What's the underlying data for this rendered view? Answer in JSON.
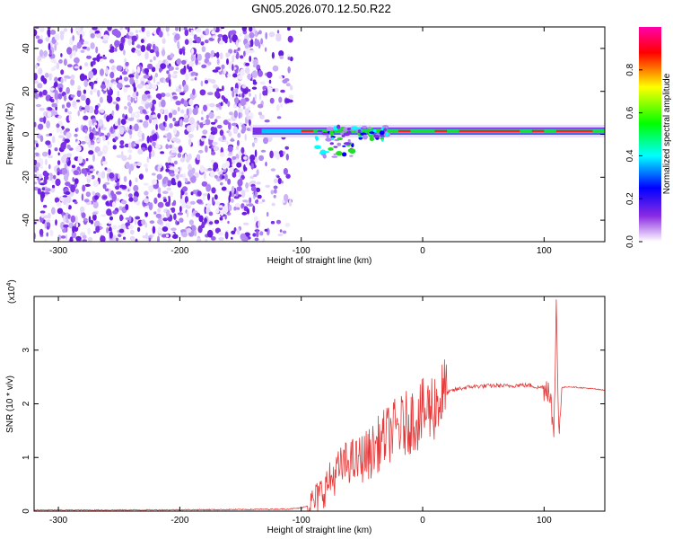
{
  "title": "GN05.2026.070.12.50.R22",
  "chart_data": [
    {
      "type": "heatmap",
      "xlabel": "Height of straight line (km)",
      "ylabel": "Frequency (Hz)",
      "xlim": [
        -320,
        150
      ],
      "ylim": [
        -50,
        50
      ],
      "x_ticks": [
        "-300",
        "-200",
        "-100",
        "0",
        "100"
      ],
      "y_ticks": [
        "-40",
        "-20",
        "0",
        "20",
        "40"
      ],
      "noise_region_x": [
        -320,
        -108
      ],
      "signal_band_center_hz": 1.5,
      "signal_start_x": -140,
      "colorbar": {
        "label": "Normalized spectral amplitude",
        "range": [
          0.0,
          1.0
        ],
        "ticks": [
          "0.0",
          "0.2",
          "0.4",
          "0.6",
          "0.8"
        ],
        "colormap": [
          "#ffffff",
          "#8a2be2",
          "#0000ff",
          "#00ffff",
          "#00ff00",
          "#ffff00",
          "#ff0000",
          "#ff00aa"
        ]
      }
    },
    {
      "type": "line",
      "xlabel": "Height of straight line (km)",
      "ylabel": "SNR (10 * v/v)",
      "y_multiplier": "(x10",
      "y_multiplier_exp": "4",
      "xlim": [
        -320,
        150
      ],
      "ylim": [
        0,
        4
      ],
      "x_ticks": [
        "-300",
        "-200",
        "-100",
        "0",
        "100"
      ],
      "y_ticks": [
        "0",
        "1",
        "2",
        "3"
      ],
      "color": "#e33b3b",
      "series": [
        {
          "x": [
            -320,
            -250,
            -150,
            -110,
            -100,
            -95,
            -90,
            -85,
            -80,
            -75,
            -70,
            -65,
            -60,
            -55,
            -50,
            -45,
            -40,
            -35,
            -30,
            -25,
            -20,
            -15,
            -10,
            -5,
            0,
            5,
            10,
            15,
            20,
            25,
            30,
            40,
            50,
            60,
            70,
            80,
            90,
            95,
            100,
            105,
            108,
            110,
            112,
            115,
            120,
            130,
            140,
            150
          ],
          "y": [
            0.02,
            0.02,
            0.03,
            0.04,
            0.06,
            0.1,
            0.15,
            0.3,
            0.45,
            0.6,
            0.75,
            0.85,
            0.95,
            0.9,
            1.0,
            1.05,
            1.15,
            1.3,
            1.4,
            1.5,
            1.55,
            1.6,
            1.7,
            1.75,
            1.8,
            1.9,
            2.0,
            2.1,
            2.2,
            2.25,
            2.28,
            2.32,
            2.33,
            2.34,
            2.33,
            2.35,
            2.34,
            2.3,
            2.32,
            2.3,
            1.2,
            3.9,
            1.6,
            2.3,
            2.32,
            2.3,
            2.28,
            2.25
          ]
        }
      ]
    }
  ]
}
